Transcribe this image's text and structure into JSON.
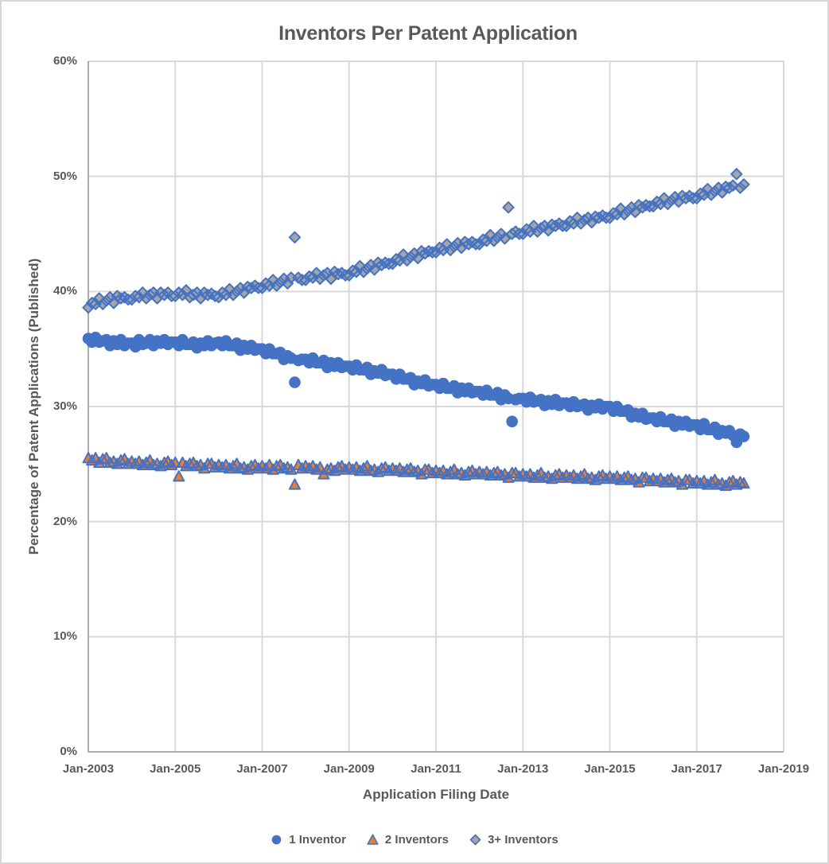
{
  "page": {
    "background": "#FFFFFF",
    "border_color": "#D8D6D6"
  },
  "chart_data": {
    "type": "scatter",
    "title": "Inventors Per Patent Application",
    "xlabel": "Application Filing Date",
    "ylabel": "Percentage of Patent Applications (Published)",
    "x_tick_labels": [
      "Jan-2003",
      "Jan-2005",
      "Jan-2007",
      "Jan-2009",
      "Jan-2011",
      "Jan-2013",
      "Jan-2015",
      "Jan-2017",
      "Jan-2019"
    ],
    "y_tick_labels": [
      "0%",
      "10%",
      "20%",
      "30%",
      "40%",
      "50%",
      "60%"
    ],
    "ylim": [
      0,
      60
    ],
    "x_axis": {
      "start": "Jan-2003",
      "axis_end": "Jan-2019",
      "interval": "monthly",
      "last_data_month": "Feb-2018"
    },
    "grid": true,
    "legend_position": "bottom",
    "colors": {
      "blue": "#4472C4",
      "orange": "#ED7D31",
      "gray": "#A5A5A5",
      "text": "#595959",
      "gridline": "#D9D9D9",
      "axis_line": "#ACACAC"
    },
    "series": [
      {
        "name": "1 Inventor",
        "marker": "circle",
        "fill": "#4472C4",
        "border": "#4472C4",
        "values": [
          35.9,
          35.6,
          36.0,
          35.6,
          35.7,
          35.8,
          35.3,
          35.7,
          35.4,
          35.8,
          35.3,
          35.5,
          35.5,
          35.2,
          35.8,
          35.4,
          35.5,
          35.8,
          35.3,
          35.7,
          35.5,
          35.8,
          35.4,
          35.6,
          35.6,
          35.3,
          35.8,
          35.4,
          35.4,
          35.6,
          35.1,
          35.5,
          35.3,
          35.7,
          35.3,
          35.5,
          35.6,
          35.3,
          35.7,
          35.3,
          35.3,
          35.5,
          34.9,
          35.3,
          35.0,
          35.3,
          34.9,
          35.0,
          35.0,
          34.6,
          35.0,
          34.6,
          34.6,
          34.7,
          34.1,
          34.4,
          34.2,
          32.1,
          34.0,
          34.1,
          34.1,
          33.8,
          34.2,
          33.8,
          33.8,
          34.0,
          33.4,
          33.8,
          33.5,
          33.8,
          33.4,
          33.5,
          33.5,
          33.2,
          33.6,
          33.2,
          33.2,
          33.4,
          32.8,
          33.1,
          32.9,
          33.2,
          32.7,
          32.8,
          32.8,
          32.4,
          32.8,
          32.4,
          32.4,
          32.5,
          31.9,
          32.2,
          32.0,
          32.3,
          31.8,
          31.9,
          31.9,
          31.6,
          32.0,
          31.6,
          31.6,
          31.8,
          31.2,
          31.6,
          31.3,
          31.6,
          31.2,
          31.3,
          31.3,
          31.0,
          31.4,
          31.0,
          31.0,
          31.2,
          30.6,
          31.0,
          30.7,
          28.7,
          30.6,
          30.7,
          30.7,
          30.4,
          30.8,
          30.4,
          30.5,
          30.6,
          30.1,
          30.5,
          30.2,
          30.6,
          30.1,
          30.3,
          30.3,
          30.0,
          30.4,
          30.0,
          30.1,
          30.2,
          29.7,
          30.1,
          29.9,
          30.2,
          29.8,
          30.0,
          30.0,
          29.6,
          30.0,
          29.6,
          29.6,
          29.7,
          29.1,
          29.4,
          29.1,
          29.4,
          28.9,
          29.0,
          29.0,
          28.7,
          29.1,
          28.7,
          28.7,
          28.9,
          28.3,
          28.7,
          28.4,
          28.7,
          28.3,
          28.4,
          28.4,
          28.0,
          28.5,
          28.0,
          28.0,
          28.2,
          27.6,
          27.9,
          27.7,
          27.9,
          27.5,
          26.9,
          27.6,
          27.4
        ]
      },
      {
        "name": "2 Inventors",
        "marker": "triangle",
        "fill": "#ED7D31",
        "border": "#4472C4",
        "values": [
          25.5,
          25.3,
          25.5,
          25.1,
          25.4,
          25.5,
          25.1,
          25.2,
          25.0,
          25.3,
          25.4,
          25.0,
          25.2,
          25.0,
          25.2,
          24.9,
          25.1,
          25.3,
          24.9,
          25.0,
          24.8,
          25.1,
          25.2,
          24.9,
          25.1,
          23.9,
          25.1,
          24.8,
          25.0,
          25.1,
          24.8,
          24.9,
          24.6,
          25.0,
          25.0,
          24.7,
          24.9,
          24.7,
          24.9,
          24.6,
          24.8,
          25.0,
          24.6,
          24.7,
          24.5,
          24.8,
          24.9,
          24.6,
          24.8,
          24.6,
          24.9,
          24.5,
          24.8,
          24.9,
          24.6,
          24.7,
          24.5,
          23.2,
          24.9,
          24.6,
          24.8,
          24.6,
          24.8,
          24.5,
          24.7,
          24.1,
          24.5,
          24.6,
          24.4,
          24.7,
          24.8,
          24.5,
          24.7,
          24.5,
          24.7,
          24.4,
          24.6,
          24.8,
          24.4,
          24.5,
          24.3,
          24.6,
          24.7,
          24.4,
          24.6,
          24.4,
          24.6,
          24.3,
          24.5,
          24.6,
          24.3,
          24.4,
          24.1,
          24.5,
          24.5,
          24.2,
          24.4,
          24.2,
          24.4,
          24.1,
          24.3,
          24.5,
          24.1,
          24.2,
          24.0,
          24.3,
          24.4,
          24.1,
          24.3,
          24.1,
          24.3,
          24.0,
          24.2,
          24.3,
          24.0,
          24.1,
          23.8,
          24.2,
          24.2,
          23.9,
          24.1,
          23.9,
          24.1,
          23.8,
          24.0,
          24.2,
          23.8,
          23.9,
          23.7,
          24.0,
          24.1,
          23.8,
          24.0,
          23.8,
          24.0,
          23.7,
          23.9,
          24.1,
          23.7,
          23.8,
          23.6,
          23.9,
          24.0,
          23.7,
          23.9,
          23.7,
          23.9,
          23.6,
          23.8,
          23.9,
          23.6,
          23.7,
          23.4,
          23.8,
          23.8,
          23.5,
          23.7,
          23.5,
          23.7,
          23.4,
          23.6,
          23.7,
          23.4,
          23.5,
          23.2,
          23.6,
          23.6,
          23.3,
          23.5,
          23.3,
          23.5,
          23.2,
          23.4,
          23.6,
          23.2,
          23.3,
          23.1,
          23.4,
          23.5,
          23.2,
          23.4,
          23.3
        ]
      },
      {
        "name": "3+ Inventors",
        "marker": "diamond",
        "fill": "#A5A5A5",
        "border": "#4472C4",
        "values": [
          38.6,
          39.0,
          38.9,
          39.4,
          38.9,
          39.2,
          39.5,
          39.0,
          39.6,
          39.4,
          39.5,
          39.3,
          39.3,
          39.6,
          39.5,
          39.9,
          39.4,
          39.7,
          39.9,
          39.4,
          39.9,
          39.7,
          39.9,
          39.6,
          39.6,
          39.9,
          39.7,
          40.1,
          39.5,
          39.7,
          39.9,
          39.4,
          39.9,
          39.7,
          39.8,
          39.6,
          39.5,
          39.9,
          39.7,
          40.2,
          39.7,
          40.0,
          40.3,
          39.9,
          40.4,
          40.3,
          40.5,
          40.3,
          40.3,
          40.7,
          40.5,
          41.0,
          40.5,
          40.8,
          41.1,
          40.7,
          41.2,
          44.7,
          41.2,
          41.0,
          41.0,
          41.3,
          41.2,
          41.6,
          41.1,
          41.4,
          41.6,
          41.1,
          41.7,
          41.5,
          41.6,
          41.4,
          41.4,
          41.8,
          41.7,
          42.2,
          41.7,
          42.0,
          42.3,
          41.9,
          42.5,
          42.3,
          42.5,
          42.4,
          42.4,
          42.8,
          42.7,
          43.2,
          42.7,
          43.0,
          43.3,
          42.9,
          43.5,
          43.3,
          43.5,
          43.4,
          43.4,
          43.8,
          43.6,
          44.1,
          43.6,
          43.9,
          44.2,
          43.8,
          44.3,
          44.1,
          44.3,
          44.1,
          44.1,
          44.5,
          44.4,
          44.9,
          44.4,
          44.7,
          45.0,
          44.6,
          47.3,
          45.0,
          45.2,
          45.0,
          45.0,
          45.4,
          45.2,
          45.7,
          45.2,
          45.5,
          45.7,
          45.3,
          45.8,
          45.7,
          45.9,
          45.7,
          45.7,
          46.1,
          45.9,
          46.4,
          45.9,
          46.2,
          46.4,
          46.0,
          46.5,
          46.4,
          46.6,
          46.4,
          46.4,
          46.8,
          46.7,
          47.2,
          46.7,
          47.0,
          47.3,
          46.9,
          47.5,
          47.3,
          47.5,
          47.4,
          47.4,
          47.8,
          47.6,
          48.1,
          47.6,
          47.9,
          48.2,
          47.8,
          48.3,
          48.1,
          48.3,
          48.1,
          48.1,
          48.5,
          48.4,
          48.9,
          48.4,
          48.7,
          49.0,
          48.6,
          49.1,
          49.0,
          49.2,
          50.2,
          49.0,
          49.3
        ]
      }
    ]
  }
}
